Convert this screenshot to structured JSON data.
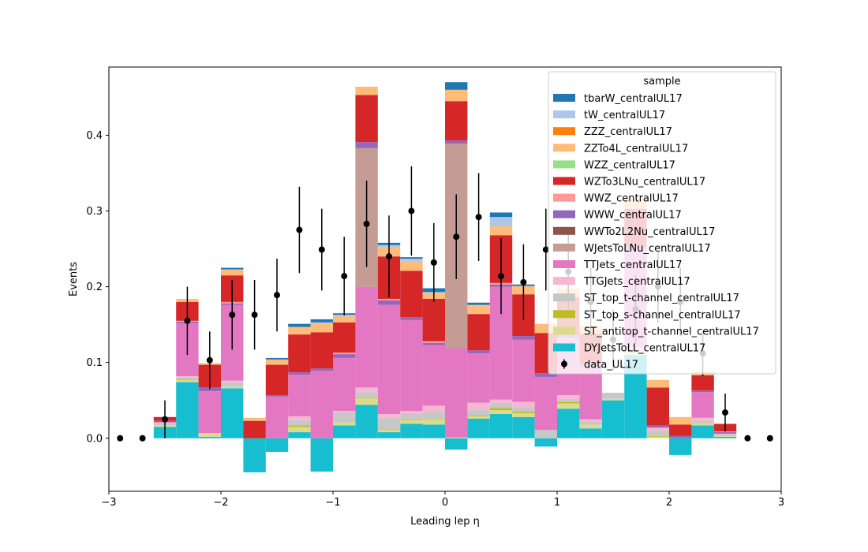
{
  "chart_data": {
    "type": "bar",
    "stacked": true,
    "xlabel": "Leading lep η",
    "ylabel": "Events",
    "xlim": [
      -3,
      3
    ],
    "ylim": [
      -0.07,
      0.49
    ],
    "xticks": [
      -3,
      -2,
      -1,
      0,
      1,
      2,
      3
    ],
    "xtick_labels": [
      "−3",
      "−2",
      "−1",
      "0",
      "1",
      "2",
      "3"
    ],
    "yticks": [
      0.0,
      0.1,
      0.2,
      0.3,
      0.4
    ],
    "ytick_labels": [
      "0.0",
      "0.1",
      "0.2",
      "0.3",
      "0.4"
    ],
    "bin_edges": [
      -2.6,
      -2.4,
      -2.2,
      -2.0,
      -1.8,
      -1.6,
      -1.4,
      -1.2,
      -1.0,
      -0.8,
      -0.6,
      -0.4,
      -0.2,
      0.0,
      0.2,
      0.4,
      0.6,
      0.8,
      1.0,
      1.2,
      1.4,
      1.6,
      1.8,
      2.0,
      2.2,
      2.4,
      2.6
    ],
    "grid": false,
    "legend": {
      "title": "sample",
      "placement": "top-right"
    },
    "series": [
      {
        "name": "DYJetsToLL_centralUL17",
        "color": "#17becf",
        "values": [
          0.015,
          0.074,
          0.002,
          0.066,
          -0.045,
          -0.018,
          0.008,
          -0.044,
          0.017,
          0.044,
          0.008,
          0.019,
          0.018,
          -0.015,
          0.026,
          0.032,
          0.028,
          -0.011,
          0.039,
          0.013,
          0.05,
          0.11,
          0.0,
          -0.022,
          0.017,
          0.002
        ]
      },
      {
        "name": "ST_antitop_t-channel_centralUL17",
        "color": "#dbdb8d",
        "values": [
          0.002,
          0.003,
          0.005,
          0.002,
          0.0,
          0.0,
          0.007,
          0.0,
          0.004,
          0.009,
          0.003,
          0.005,
          0.007,
          0.001,
          0.003,
          0.005,
          0.005,
          0.0,
          0.007,
          0.005,
          0.002,
          0.003,
          0.002,
          0.0,
          0.003,
          0.001
        ]
      },
      {
        "name": "ST_top_s-channel_centralUL17",
        "color": "#bcbd22",
        "values": [
          0.0,
          0.001,
          0.0,
          0.0,
          0.0,
          0.0,
          0.002,
          0.0,
          0.0,
          0.001,
          0.001,
          0.001,
          0.001,
          0.0,
          0.001,
          0.003,
          0.002,
          0.0,
          0.002,
          0.0,
          0.0,
          0.0,
          0.001,
          0.0,
          0.0,
          0.0
        ]
      },
      {
        "name": "ST_top_t-channel_centralUL17",
        "color": "#c7c7c7",
        "values": [
          0.002,
          0.002,
          0.0,
          0.006,
          0.0,
          0.0,
          0.007,
          0.0,
          0.013,
          0.007,
          0.015,
          0.007,
          0.01,
          0.0,
          0.008,
          0.007,
          0.006,
          0.011,
          0.004,
          0.004,
          0.008,
          0.003,
          0.007,
          0.0,
          0.003,
          0.002
        ]
      },
      {
        "name": "TTGJets_centralUL17",
        "color": "#f7b6d2",
        "values": [
          0.002,
          0.002,
          0.0,
          0.002,
          0.0,
          0.0,
          0.005,
          0.0,
          0.002,
          0.006,
          0.005,
          0.004,
          0.007,
          0.0,
          0.009,
          0.004,
          0.007,
          0.0,
          0.005,
          0.003,
          0.0,
          0.004,
          0.004,
          0.0,
          0.004,
          0.001
        ]
      },
      {
        "name": "TTJets_centralUL17",
        "color": "#e377c2",
        "values": [
          0.0,
          0.07,
          0.055,
          0.1,
          0.0,
          0.055,
          0.055,
          0.089,
          0.07,
          0.133,
          0.144,
          0.12,
          0.08,
          0.118,
          0.065,
          0.149,
          0.082,
          0.07,
          0.075,
          0.07,
          0.0,
          0.13,
          0.0,
          0.0,
          0.034,
          0.0
        ]
      },
      {
        "name": "WJetsToLNu_centralUL17",
        "color": "#c49c94",
        "values": [
          0.0,
          0.0,
          0.0,
          0.0,
          0.0,
          0.0,
          0.0,
          0.0,
          0.0,
          0.183,
          0.0,
          0.0,
          0.0,
          0.27,
          0.0,
          0.0,
          0.0,
          0.0,
          0.0,
          0.0,
          0.0,
          0.0,
          0.0,
          0.0,
          0.0,
          0.0
        ]
      },
      {
        "name": "WWTo2L2Nu_centralUL17",
        "color": "#8c564b",
        "values": [
          0.0,
          0.0,
          0.0,
          0.0,
          0.0,
          0.0,
          0.0,
          0.0,
          0.0,
          0.0,
          0.0,
          0.0,
          0.0,
          0.0,
          0.0,
          0.0,
          0.0,
          0.0,
          0.0,
          0.0,
          0.0,
          0.0,
          0.0,
          0.0,
          0.0,
          0.0
        ]
      },
      {
        "name": "WWW_centralUL17",
        "color": "#9467bd",
        "values": [
          0.002,
          0.002,
          0.005,
          0.002,
          0.0,
          0.002,
          0.003,
          0.003,
          0.005,
          0.008,
          0.006,
          0.004,
          0.003,
          0.004,
          0.004,
          0.003,
          0.005,
          0.005,
          0.004,
          0.003,
          0.0,
          0.003,
          0.003,
          0.003,
          0.002,
          0.002
        ]
      },
      {
        "name": "WWZ_centralUL17",
        "color": "#ff9896",
        "values": [
          0.0,
          0.001,
          0.0,
          0.002,
          0.0,
          0.0,
          0.0,
          0.0,
          0.002,
          0.0,
          0.002,
          0.0,
          0.002,
          0.0,
          0.0,
          0.002,
          0.0,
          0.0,
          0.0,
          0.0,
          0.0,
          0.0,
          0.0,
          0.0,
          0.0,
          0.001
        ]
      },
      {
        "name": "WZTo3LNu_centralUL17",
        "color": "#d62728",
        "values": [
          0.005,
          0.025,
          0.03,
          0.035,
          0.023,
          0.04,
          0.05,
          0.048,
          0.04,
          0.062,
          0.056,
          0.061,
          0.056,
          0.052,
          0.048,
          0.063,
          0.055,
          0.053,
          0.05,
          0.04,
          0.0,
          0.05,
          0.05,
          0.015,
          0.02,
          0.01
        ]
      },
      {
        "name": "WZZ_centralUL17",
        "color": "#98df8a",
        "values": [
          0.0,
          0.0,
          0.0,
          0.0,
          0.0,
          0.0,
          0.0,
          0.0,
          0.0,
          0.0,
          0.0,
          0.0,
          0.0,
          0.0,
          0.0,
          0.0,
          0.0,
          0.0,
          0.0,
          0.0,
          0.0,
          0.0,
          0.0,
          0.0,
          0.0,
          0.0
        ]
      },
      {
        "name": "ZZTo4L_centralUL17",
        "color": "#ffbb78",
        "values": [
          0.0,
          0.004,
          0.002,
          0.008,
          0.004,
          0.007,
          0.01,
          0.011,
          0.008,
          0.011,
          0.012,
          0.013,
          0.008,
          0.015,
          0.012,
          0.012,
          0.011,
          0.012,
          0.012,
          0.01,
          0.0,
          0.014,
          0.01,
          0.01,
          0.005,
          0.0
        ]
      },
      {
        "name": "ZZZ_centralUL17",
        "color": "#ff7f0e",
        "values": [
          0.0,
          0.0,
          0.0,
          0.0,
          0.0,
          0.0,
          0.0,
          0.0,
          0.0,
          0.0,
          0.0,
          0.0,
          0.0,
          0.0,
          0.0,
          0.0,
          0.0,
          0.0,
          0.0,
          0.0,
          0.0,
          0.0,
          0.0,
          0.0,
          0.0,
          0.0
        ]
      },
      {
        "name": "tW_centralUL17",
        "color": "#aec7e8",
        "values": [
          0.0,
          0.0,
          0.0,
          0.0,
          0.0,
          0.0,
          0.0,
          0.002,
          0.002,
          0.0,
          0.003,
          0.003,
          0.001,
          0.0,
          0.0,
          0.012,
          0.0,
          0.0,
          0.0,
          0.0,
          0.0,
          0.0,
          0.0,
          0.0,
          0.0,
          0.0
        ]
      },
      {
        "name": "tbarW_centralUL17",
        "color": "#1f77b4",
        "values": [
          0.0,
          0.0,
          0.0,
          0.002,
          0.0,
          0.002,
          0.004,
          0.004,
          0.002,
          0.0,
          0.003,
          0.002,
          0.005,
          0.01,
          0.003,
          0.006,
          0.002,
          0.0,
          0.0,
          0.0,
          0.0,
          0.0,
          0.0,
          0.0,
          0.0,
          0.0
        ]
      }
    ],
    "data": {
      "name": "data_UL17",
      "color": "#000000",
      "x": [
        -2.9,
        -2.7,
        -2.5,
        -2.3,
        -2.1,
        -1.9,
        -1.7,
        -1.5,
        -1.3,
        -1.1,
        -0.9,
        -0.7,
        -0.5,
        -0.3,
        -0.1,
        0.1,
        0.3,
        0.5,
        0.7,
        0.9,
        1.1,
        1.3,
        1.5,
        1.7,
        1.9,
        2.1,
        2.3,
        2.5,
        2.7,
        2.9
      ],
      "y": [
        0.0,
        0.0,
        0.025,
        0.155,
        0.103,
        0.163,
        0.163,
        0.189,
        0.275,
        0.249,
        0.214,
        0.283,
        0.24,
        0.3,
        0.232,
        0.266,
        0.292,
        0.214,
        0.206,
        0.249,
        0.22,
        0.18,
        0.13,
        0.17,
        0.2,
        0.18,
        0.112,
        0.034,
        0.0,
        0.0
      ],
      "err": [
        0.0,
        0.0,
        0.025,
        0.045,
        0.038,
        0.046,
        0.046,
        0.048,
        0.057,
        0.054,
        0.052,
        0.057,
        0.054,
        0.059,
        0.052,
        0.056,
        0.058,
        0.05,
        0.05,
        0.054,
        0.05,
        0.045,
        0.04,
        0.045,
        0.047,
        0.045,
        0.03,
        0.025,
        0.0,
        0.0
      ]
    }
  }
}
